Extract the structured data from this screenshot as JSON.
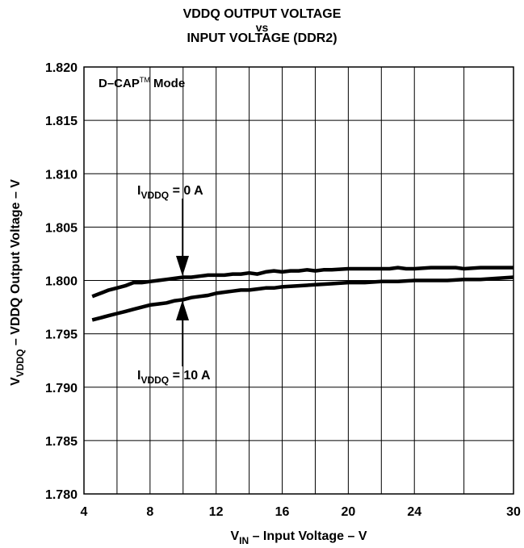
{
  "chart_data": {
    "type": "line",
    "title_lines": [
      "VDDQ OUTPUT VOLTAGE",
      "vs",
      "INPUT VOLTAGE (DDR2)"
    ],
    "xlabel": {
      "main": "V",
      "sub": "IN",
      "rest": " – Input Voltage – V"
    },
    "ylabel": {
      "main": "V",
      "sub": "VDDQ",
      "rest": " – VDDQ Output Voltage – V"
    },
    "mode_label": {
      "main": "D–CAP",
      "sup": "TM",
      "rest": " Mode"
    },
    "xlim": [
      4,
      30
    ],
    "ylim": [
      1.78,
      1.82
    ],
    "x_ticks": [
      4,
      8,
      12,
      16,
      20,
      24,
      30
    ],
    "x_tick_labels": [
      "4",
      "8",
      "12",
      "16",
      "20",
      "24",
      "30"
    ],
    "x_gridlines": [
      4,
      6,
      8,
      10,
      12,
      14,
      16,
      18,
      20,
      22,
      24,
      27,
      30
    ],
    "y_ticks": [
      1.78,
      1.785,
      1.79,
      1.795,
      1.8,
      1.805,
      1.81,
      1.815,
      1.82
    ],
    "y_tick_labels": [
      "1.780",
      "1.785",
      "1.790",
      "1.795",
      "1.800",
      "1.805",
      "1.810",
      "1.815",
      "1.820"
    ],
    "grid": true,
    "series": [
      {
        "annotation": {
          "main": "I",
          "sub": "VDDQ",
          "rest": " = 0 A"
        },
        "points": [
          [
            4.5,
            1.7985
          ],
          [
            5.0,
            1.7988
          ],
          [
            5.5,
            1.7991
          ],
          [
            6.0,
            1.7993
          ],
          [
            6.5,
            1.7995
          ],
          [
            7.0,
            1.7998
          ],
          [
            7.5,
            1.7998
          ],
          [
            8.0,
            1.7999
          ],
          [
            8.5,
            1.8
          ],
          [
            9.0,
            1.8001
          ],
          [
            9.5,
            1.8002
          ],
          [
            10.0,
            1.8003
          ],
          [
            10.5,
            1.8003
          ],
          [
            11.0,
            1.8004
          ],
          [
            11.5,
            1.8005
          ],
          [
            12.0,
            1.8005
          ],
          [
            12.5,
            1.8005
          ],
          [
            13.0,
            1.8006
          ],
          [
            13.5,
            1.8006
          ],
          [
            14.0,
            1.8007
          ],
          [
            14.5,
            1.8006
          ],
          [
            15.0,
            1.8008
          ],
          [
            15.5,
            1.8009
          ],
          [
            16.0,
            1.8008
          ],
          [
            16.5,
            1.8009
          ],
          [
            17.0,
            1.8009
          ],
          [
            17.5,
            1.801
          ],
          [
            18.0,
            1.8009
          ],
          [
            18.5,
            1.801
          ],
          [
            19.0,
            1.801
          ],
          [
            20.0,
            1.8011
          ],
          [
            21.0,
            1.8011
          ],
          [
            22.0,
            1.8011
          ],
          [
            22.5,
            1.8011
          ],
          [
            23.0,
            1.8012
          ],
          [
            23.5,
            1.8011
          ],
          [
            24.0,
            1.8011
          ],
          [
            25.0,
            1.8012
          ],
          [
            26.0,
            1.8012
          ],
          [
            26.5,
            1.8012
          ],
          [
            27.0,
            1.8011
          ],
          [
            28.0,
            1.8012
          ],
          [
            29.0,
            1.8012
          ],
          [
            30.0,
            1.8012
          ]
        ]
      },
      {
        "annotation": {
          "main": "I",
          "sub": "VDDQ",
          "rest": " = 10 A"
        },
        "points": [
          [
            4.5,
            1.7963
          ],
          [
            5.0,
            1.7965
          ],
          [
            5.5,
            1.7967
          ],
          [
            6.0,
            1.7969
          ],
          [
            6.5,
            1.7971
          ],
          [
            7.0,
            1.7973
          ],
          [
            7.5,
            1.7975
          ],
          [
            8.0,
            1.7977
          ],
          [
            8.5,
            1.7978
          ],
          [
            9.0,
            1.7979
          ],
          [
            9.5,
            1.7981
          ],
          [
            10.0,
            1.7982
          ],
          [
            10.5,
            1.7984
          ],
          [
            11.0,
            1.7985
          ],
          [
            11.5,
            1.7986
          ],
          [
            12.0,
            1.7988
          ],
          [
            12.5,
            1.7989
          ],
          [
            13.0,
            1.799
          ],
          [
            13.5,
            1.7991
          ],
          [
            14.0,
            1.7991
          ],
          [
            14.5,
            1.7992
          ],
          [
            15.0,
            1.7993
          ],
          [
            15.5,
            1.7993
          ],
          [
            16.0,
            1.7994
          ],
          [
            17.0,
            1.7995
          ],
          [
            18.0,
            1.7996
          ],
          [
            19.0,
            1.7997
          ],
          [
            20.0,
            1.7998
          ],
          [
            21.0,
            1.7998
          ],
          [
            22.0,
            1.7999
          ],
          [
            23.0,
            1.7999
          ],
          [
            24.0,
            1.8
          ],
          [
            25.0,
            1.8
          ],
          [
            26.0,
            1.8
          ],
          [
            27.0,
            1.8001
          ],
          [
            28.0,
            1.8001
          ],
          [
            29.0,
            1.8002
          ],
          [
            30.0,
            1.8003
          ]
        ]
      }
    ]
  }
}
